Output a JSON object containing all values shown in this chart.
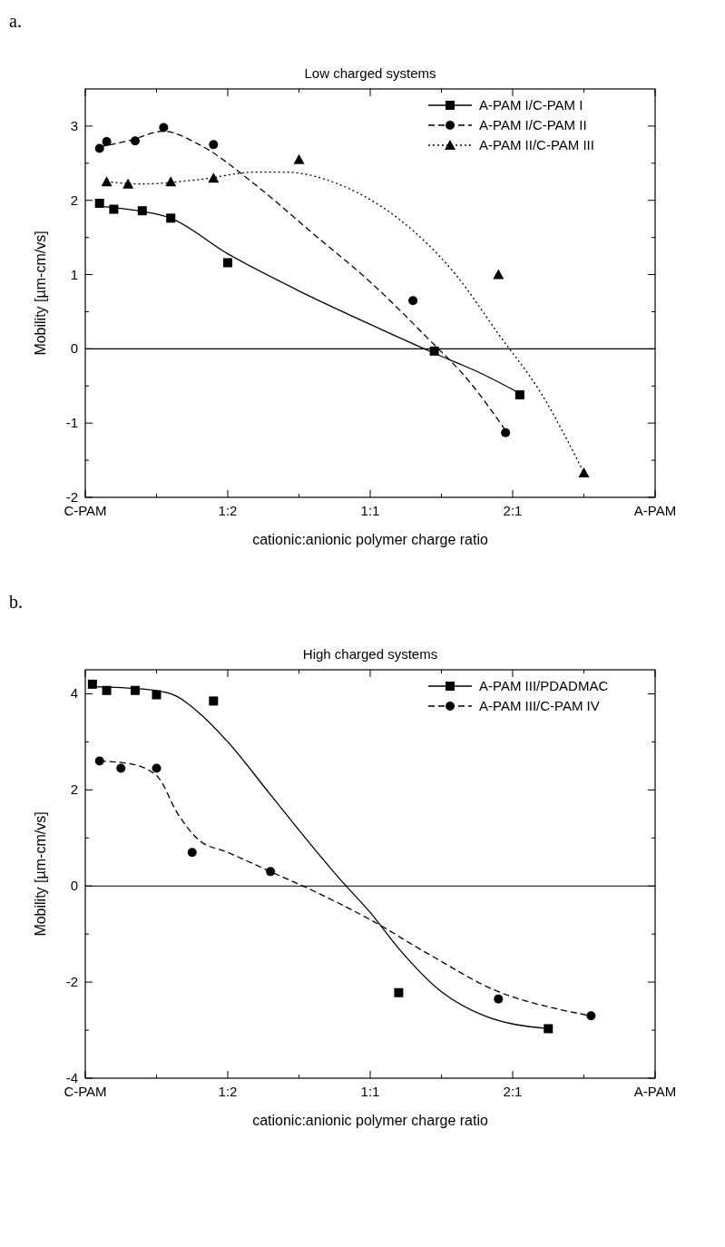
{
  "chart_data": [
    {
      "type": "scatter",
      "title": "Low charged systems",
      "annotations": [
        "a."
      ],
      "xlabel": "cationic:anionic polymer charge ratio",
      "ylabel": "Mobility [µm-cm/vs]",
      "ylim": [
        -2,
        3.5
      ],
      "categories": [
        "C-PAM",
        null,
        null,
        null,
        null,
        null,
        null,
        null,
        null,
        null,
        null,
        null,
        null,
        null,
        null,
        null,
        null,
        null,
        null,
        null,
        "1:2",
        null,
        null,
        null,
        null,
        null,
        null,
        null,
        null,
        null,
        null,
        null,
        null,
        null,
        null,
        null,
        null,
        null,
        null,
        null,
        "1:1",
        null,
        null,
        null,
        null,
        null,
        null,
        null,
        null,
        null,
        null,
        null,
        null,
        null,
        null,
        null,
        null,
        null,
        null,
        null,
        "2:1",
        null,
        null,
        null,
        null,
        null,
        null,
        null,
        null,
        null,
        null,
        null,
        null,
        null,
        null,
        null,
        null,
        null,
        null,
        null,
        "A-PAM"
      ],
      "yticks": [
        -2,
        {
          "value": -1.5,
          "label": null
        },
        -1,
        {
          "value": -0.5,
          "label": null
        },
        0,
        {
          "value": 0.5,
          "label": null
        },
        1,
        {
          "value": 1.5,
          "label": null
        },
        2,
        {
          "value": 2.5,
          "label": null
        },
        3
      ],
      "ref_lines": [
        {
          "axis": "y",
          "value": 0,
          "color": "#000000",
          "line_style": "solid"
        }
      ],
      "legend": "top right",
      "series": [
        {
          "name": "A-PAM I/C-PAM I",
          "type": "scatter",
          "marker": "square",
          "line_style": "solid",
          "color": "#000000",
          "values": [
            null,
            null,
            1.96,
            null,
            1.88,
            null,
            null,
            null,
            1.86,
            null,
            null,
            null,
            1.76,
            null,
            null,
            null,
            null,
            null,
            null,
            null,
            1.16,
            null,
            null,
            null,
            null,
            null,
            null,
            null,
            null,
            null,
            null,
            null,
            null,
            null,
            null,
            null,
            null,
            null,
            null,
            null,
            null,
            null,
            null,
            null,
            null,
            null,
            null,
            null,
            null,
            -0.03,
            null,
            null,
            null,
            null,
            null,
            null,
            null,
            null,
            null,
            null,
            null,
            -0.62,
            null,
            null,
            null,
            null,
            null,
            null,
            null,
            null,
            null,
            null,
            null,
            null,
            null,
            null,
            null,
            null,
            null,
            null,
            null
          ]
        },
        {
          "type": "line",
          "line_style": "solid",
          "color": "#000000",
          "values": [
            null,
            null,
            1.92,
            null,
            null,
            null,
            1.88,
            null,
            null,
            null,
            null,
            null,
            1.76,
            null,
            null,
            null,
            null,
            null,
            null,
            null,
            1.28,
            null,
            null,
            null,
            null,
            null,
            null,
            null,
            null,
            null,
            0.78,
            null,
            null,
            null,
            null,
            null,
            null,
            null,
            null,
            null,
            0.33,
            null,
            null,
            null,
            null,
            null,
            null,
            null,
            null,
            -0.06,
            null,
            null,
            null,
            null,
            null,
            null,
            -0.35,
            null,
            null,
            null,
            null,
            -0.6,
            null,
            null,
            null,
            null,
            null,
            null,
            null,
            null,
            null,
            null,
            null,
            null,
            null,
            null,
            null,
            null,
            null,
            null,
            null
          ]
        },
        {
          "name": "A-PAM I/C-PAM II",
          "type": "scatter",
          "marker": "circle",
          "line_style": "dashed",
          "color": "#000000",
          "values": [
            null,
            null,
            2.7,
            2.79,
            null,
            null,
            null,
            2.8,
            null,
            null,
            null,
            2.98,
            null,
            null,
            null,
            null,
            null,
            null,
            2.75,
            null,
            null,
            null,
            null,
            null,
            null,
            null,
            null,
            null,
            null,
            null,
            null,
            null,
            null,
            null,
            null,
            null,
            null,
            null,
            null,
            null,
            null,
            null,
            null,
            null,
            null,
            null,
            0.65,
            null,
            null,
            null,
            null,
            null,
            null,
            null,
            null,
            null,
            null,
            null,
            null,
            -1.13,
            null,
            null,
            null,
            null,
            null,
            null,
            null,
            null,
            null,
            null,
            null,
            null,
            null,
            null,
            null,
            null,
            null,
            null,
            null,
            null,
            null
          ]
        },
        {
          "type": "line",
          "line_style": "dashed",
          "color": "#000000",
          "values": [
            null,
            null,
            2.72,
            null,
            null,
            null,
            2.8,
            null,
            null,
            null,
            null,
            2.93,
            null,
            null,
            null,
            null,
            2.75,
            null,
            null,
            null,
            null,
            null,
            null,
            null,
            2.2,
            null,
            null,
            null,
            null,
            null,
            null,
            null,
            1.55,
            null,
            null,
            null,
            null,
            null,
            null,
            null,
            0.9,
            null,
            null,
            null,
            null,
            null,
            null,
            null,
            0.15,
            null,
            null,
            null,
            null,
            null,
            -0.45,
            null,
            null,
            null,
            null,
            -1.1,
            null,
            null,
            null,
            null,
            null,
            null,
            null,
            null,
            null,
            null,
            null,
            null,
            null,
            null,
            null,
            null,
            null,
            null,
            null,
            null,
            null
          ]
        },
        {
          "name": "A-PAM II/C-PAM III",
          "type": "scatter",
          "marker": "triangle",
          "line_style": "dotted",
          "color": "#000000",
          "values": [
            null,
            null,
            null,
            2.25,
            null,
            null,
            2.22,
            null,
            null,
            null,
            null,
            null,
            2.25,
            null,
            null,
            null,
            null,
            null,
            2.3,
            null,
            null,
            null,
            null,
            null,
            null,
            null,
            null,
            null,
            null,
            null,
            2.55,
            null,
            null,
            null,
            null,
            null,
            null,
            null,
            null,
            null,
            null,
            null,
            null,
            null,
            null,
            null,
            null,
            null,
            null,
            null,
            null,
            null,
            null,
            null,
            null,
            null,
            null,
            null,
            1.0,
            null,
            null,
            null,
            null,
            null,
            null,
            null,
            null,
            null,
            null,
            null,
            -1.67,
            null,
            null,
            null,
            null,
            null,
            null,
            null,
            null,
            null,
            null
          ]
        },
        {
          "type": "line",
          "line_style": "dotted",
          "color": "#000000",
          "values": [
            null,
            null,
            null,
            2.25,
            null,
            null,
            null,
            null,
            2.22,
            null,
            null,
            null,
            null,
            null,
            null,
            null,
            2.28,
            null,
            null,
            null,
            null,
            null,
            null,
            null,
            2.38,
            null,
            null,
            null,
            2.38,
            null,
            null,
            null,
            null,
            null,
            null,
            null,
            2.2,
            null,
            null,
            null,
            null,
            null,
            null,
            null,
            1.75,
            null,
            null,
            null,
            null,
            null,
            null,
            null,
            1.0,
            null,
            null,
            null,
            null,
            null,
            0.2,
            null,
            null,
            null,
            null,
            null,
            -0.6,
            null,
            null,
            null,
            null,
            null,
            -1.67,
            null,
            null,
            null,
            null,
            null,
            null,
            null,
            null,
            null,
            null
          ]
        }
      ]
    },
    {
      "type": "scatter",
      "title": "High charged systems",
      "annotations": [
        "b."
      ],
      "xlabel": "cationic:anionic polymer charge ratio",
      "ylabel": "Mobility [µm-cm/vs]",
      "ylim": [
        -4,
        4.5
      ],
      "categories": [
        "C-PAM",
        null,
        null,
        null,
        null,
        null,
        null,
        null,
        null,
        null,
        null,
        null,
        null,
        null,
        null,
        null,
        null,
        null,
        null,
        null,
        "1:2",
        null,
        null,
        null,
        null,
        null,
        null,
        null,
        null,
        null,
        null,
        null,
        null,
        null,
        null,
        null,
        null,
        null,
        null,
        null,
        "1:1",
        null,
        null,
        null,
        null,
        null,
        null,
        null,
        null,
        null,
        null,
        null,
        null,
        null,
        null,
        null,
        null,
        null,
        null,
        null,
        "2:1",
        null,
        null,
        null,
        null,
        null,
        null,
        null,
        null,
        null,
        null,
        null,
        null,
        null,
        null,
        null,
        null,
        null,
        null,
        null,
        "A-PAM"
      ],
      "yticks": [
        -4,
        {
          "value": -3,
          "label": null
        },
        -2,
        {
          "value": -1,
          "label": null
        },
        0,
        {
          "value": 1,
          "label": null
        },
        2,
        {
          "value": 3,
          "label": null
        },
        4
      ],
      "ref_lines": [
        {
          "axis": "y",
          "value": 0,
          "color": "#000000",
          "line_style": "solid"
        }
      ],
      "legend": "top right",
      "series": [
        {
          "name": "A-PAM III/PDADMAC",
          "type": "scatter",
          "marker": "square",
          "line_style": "solid",
          "color": "#000000",
          "values": [
            null,
            4.2,
            null,
            4.07,
            null,
            null,
            null,
            4.07,
            null,
            null,
            3.98,
            null,
            null,
            null,
            null,
            null,
            null,
            null,
            3.85,
            null,
            null,
            null,
            null,
            null,
            null,
            null,
            null,
            null,
            null,
            null,
            null,
            null,
            null,
            null,
            null,
            null,
            null,
            null,
            null,
            null,
            null,
            null,
            null,
            null,
            -2.22,
            null,
            null,
            null,
            null,
            null,
            null,
            null,
            null,
            null,
            null,
            null,
            null,
            null,
            null,
            null,
            null,
            null,
            null,
            null,
            null,
            -2.97,
            null,
            null,
            null,
            null,
            null,
            null,
            null,
            null,
            null,
            null,
            null,
            null,
            null,
            null,
            null
          ]
        },
        {
          "type": "line",
          "line_style": "solid",
          "color": "#000000",
          "values": [
            null,
            4.15,
            null,
            null,
            null,
            null,
            null,
            null,
            4.1,
            null,
            null,
            null,
            4.0,
            null,
            null,
            null,
            3.6,
            null,
            null,
            null,
            3.0,
            null,
            null,
            null,
            null,
            null,
            1.9,
            null,
            null,
            null,
            null,
            null,
            0.8,
            null,
            null,
            null,
            0.1,
            null,
            null,
            null,
            -0.55,
            null,
            null,
            null,
            -1.3,
            null,
            null,
            null,
            null,
            null,
            -2.2,
            null,
            null,
            null,
            null,
            null,
            -2.7,
            null,
            null,
            null,
            null,
            null,
            null,
            null,
            null,
            -2.97,
            null,
            null,
            null,
            null,
            null,
            null,
            null,
            null,
            null,
            null,
            null,
            null,
            null,
            null,
            null
          ]
        },
        {
          "name": "A-PAM III/C-PAM IV",
          "type": "scatter",
          "marker": "circle",
          "line_style": "dashed",
          "color": "#000000",
          "values": [
            null,
            null,
            2.6,
            null,
            null,
            2.45,
            null,
            null,
            null,
            null,
            2.45,
            null,
            null,
            null,
            null,
            0.7,
            null,
            null,
            null,
            null,
            null,
            null,
            null,
            null,
            null,
            null,
            0.3,
            null,
            null,
            null,
            null,
            null,
            null,
            null,
            null,
            null,
            null,
            null,
            null,
            null,
            null,
            null,
            null,
            null,
            null,
            null,
            null,
            null,
            null,
            null,
            null,
            null,
            null,
            null,
            null,
            null,
            null,
            null,
            -2.35,
            null,
            null,
            null,
            null,
            null,
            null,
            null,
            null,
            null,
            null,
            null,
            null,
            -2.7,
            null,
            null,
            null,
            null,
            null,
            null,
            null,
            null,
            null
          ]
        },
        {
          "type": "line",
          "line_style": "dashed",
          "color": "#000000",
          "values": [
            null,
            null,
            2.6,
            null,
            null,
            null,
            2.55,
            null,
            null,
            null,
            2.3,
            null,
            null,
            1.5,
            null,
            null,
            0.95,
            null,
            null,
            null,
            0.7,
            null,
            null,
            null,
            null,
            null,
            0.3,
            null,
            null,
            null,
            null,
            null,
            -0.1,
            null,
            null,
            null,
            null,
            null,
            null,
            null,
            -0.7,
            null,
            null,
            null,
            null,
            null,
            null,
            null,
            -1.4,
            null,
            null,
            null,
            null,
            null,
            null,
            null,
            null,
            null,
            -2.2,
            null,
            null,
            null,
            null,
            null,
            null,
            null,
            -2.55,
            null,
            null,
            null,
            null,
            -2.7,
            null,
            null,
            null,
            null,
            null,
            null,
            null,
            null,
            null
          ]
        }
      ]
    }
  ]
}
